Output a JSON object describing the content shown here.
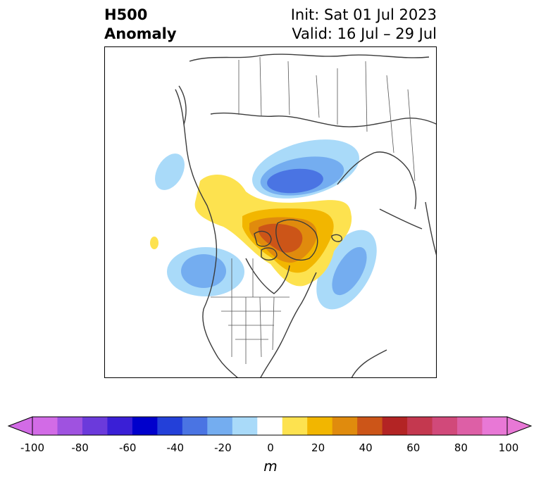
{
  "title": {
    "left_line1": "H500",
    "left_line2": "Anomaly",
    "right_line1": "Init: Sat 01 Jul 2023",
    "right_line2": "Valid: 16 Jul – 29 Jul"
  },
  "colorbar": {
    "unit": "m",
    "ticks": [
      "-100",
      "-80",
      "-60",
      "-40",
      "-20",
      "0",
      "20",
      "40",
      "60",
      "80",
      "100"
    ],
    "levels": [
      -100,
      -90,
      -80,
      -70,
      -60,
      -50,
      -40,
      -30,
      -20,
      -10,
      10,
      20,
      30,
      40,
      50,
      60,
      70,
      80,
      90,
      100
    ],
    "colors": [
      "#d26be6",
      "#9f52e0",
      "#6b3adb",
      "#3a1fd6",
      "#0000cc",
      "#2340d9",
      "#4a74e3",
      "#74adf0",
      "#a9daf9",
      "#ffffff",
      "#fde24f",
      "#f2b600",
      "#e08b0d",
      "#cc5518",
      "#b32424",
      "#c4384f",
      "#d1497a",
      "#dd5fa6",
      "#e878d6"
    ],
    "extend_low": "#d26be6",
    "extend_high": "#e878d6"
  }
}
